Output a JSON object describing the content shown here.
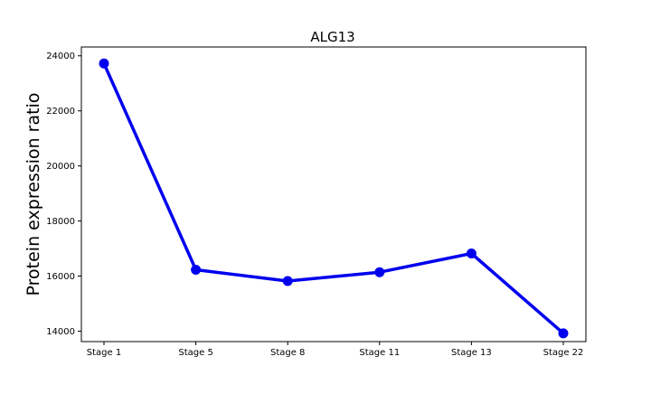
{
  "chart_data": {
    "type": "line",
    "title": "ALG13",
    "xlabel": "",
    "ylabel": "Protein expression ratio",
    "categories": [
      "Stage 1",
      "Stage 5",
      "Stage 8",
      "Stage 11",
      "Stage 13",
      "Stage 22"
    ],
    "series": [
      {
        "values": [
          23720,
          16230,
          15820,
          16140,
          16820,
          13920
        ]
      }
    ],
    "yticks": [
      14000,
      16000,
      18000,
      20000,
      22000,
      24000
    ],
    "ytick_labels": [
      "14000",
      "16000",
      "18000",
      "20000",
      "22000",
      "24000"
    ],
    "ylim": [
      13620,
      24320
    ],
    "grid": false,
    "legend": "none",
    "line_color": "#0000ee"
  }
}
